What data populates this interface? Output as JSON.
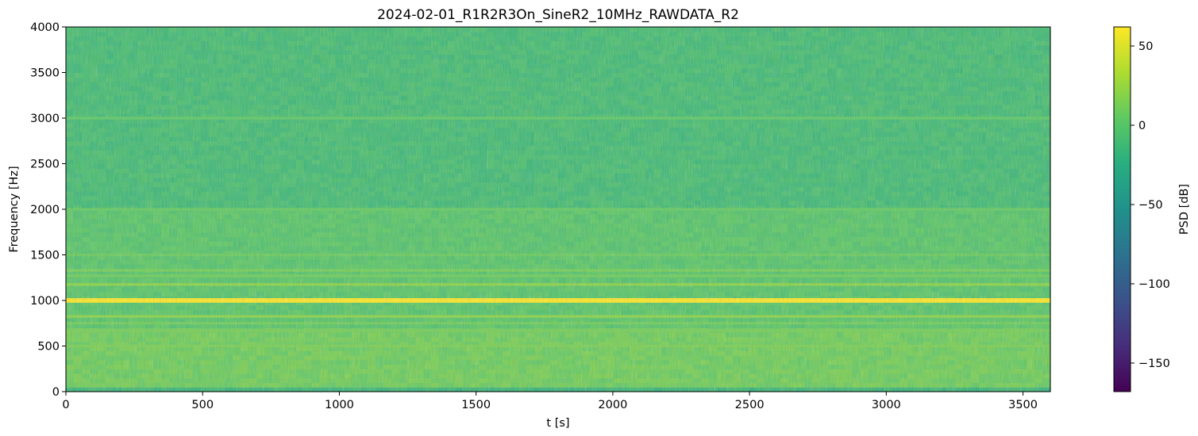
{
  "chart_data": {
    "type": "heatmap",
    "title": "2024-02-01_R1R2R3On_SineR2_10MHz_RAWDATA_R2",
    "xlabel": "t [s]",
    "ylabel": "Frequency [Hz]",
    "xlim": [
      0,
      3600
    ],
    "ylim": [
      0,
      4000
    ],
    "xticks": [
      0,
      500,
      1000,
      1500,
      2000,
      2500,
      3000,
      3500
    ],
    "yticks": [
      0,
      500,
      1000,
      1500,
      2000,
      2500,
      3000,
      3500,
      4000
    ],
    "colorbar": {
      "label": "PSD [dB]",
      "range": [
        -168,
        62
      ],
      "ticks": [
        50,
        0,
        -50,
        -100,
        -150
      ],
      "tick_labels": [
        "50",
        "0",
        "−50",
        "−100",
        "−150"
      ],
      "colormap": "viridis"
    },
    "background_level_db": {
      "low_frequency_0_700Hz": 10,
      "mid_frequency_700_2000Hz": 0,
      "high_frequency_2000_4000Hz": -10
    },
    "horizontal_bands": [
      {
        "frequency_hz": 1000,
        "psd_db": 62
      },
      {
        "frequency_hz": 1175,
        "psd_db": 20
      },
      {
        "frequency_hz": 825,
        "psd_db": 20
      },
      {
        "frequency_hz": 1330,
        "psd_db": 12
      },
      {
        "frequency_hz": 670,
        "psd_db": 12
      },
      {
        "frequency_hz": 1500,
        "psd_db": 8
      },
      {
        "frequency_hz": 1270,
        "psd_db": 10
      },
      {
        "frequency_hz": 750,
        "psd_db": 10
      },
      {
        "frequency_hz": 2000,
        "psd_db": 6
      },
      {
        "frequency_hz": 3000,
        "psd_db": 4
      },
      {
        "frequency_hz": 500,
        "psd_db": 14
      }
    ]
  }
}
